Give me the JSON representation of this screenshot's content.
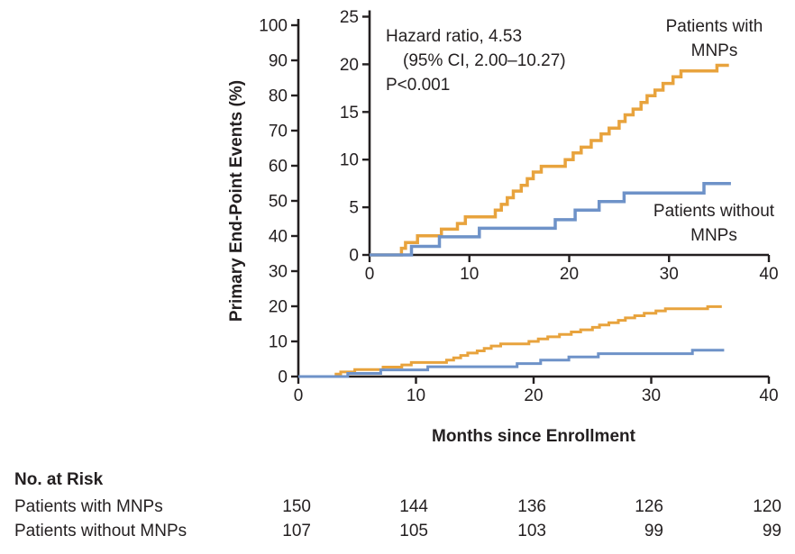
{
  "figure": {
    "series_labels": {
      "with_mnps_line1": "Patients with",
      "with_mnps_line2": "MNPs",
      "without_mnps_line1": "Patients without",
      "without_mnps_line2": "MNPs"
    }
  },
  "colors": {
    "with_mnps": "#E8A33D",
    "without_mnps": "#6E92C8",
    "axis": "#231F20",
    "background": "#FFFFFF"
  },
  "chart_data": [
    {
      "type": "line",
      "variant": "kaplan-meier-step",
      "title": "",
      "xlabel": "Months since Enrollment",
      "ylabel": "Primary End-Point Events (%)",
      "xlim": [
        0,
        40
      ],
      "ylim": [
        0,
        100
      ],
      "xticks": [
        0,
        10,
        20,
        30,
        40
      ],
      "yticks": [
        0,
        10,
        20,
        30,
        40,
        50,
        60,
        70,
        80,
        90,
        100
      ],
      "grid": false,
      "legend_position": "labels-on-plot",
      "series": [
        {
          "name": "Patients with MNPs",
          "color": "#E8A33D",
          "points": [
            [
              0,
              0
            ],
            [
              3.2,
              0.7
            ],
            [
              3.6,
              1.3
            ],
            [
              4.8,
              2.0
            ],
            [
              7.2,
              2.7
            ],
            [
              8.8,
              3.3
            ],
            [
              9.6,
              4.0
            ],
            [
              12.6,
              4.7
            ],
            [
              13.2,
              5.3
            ],
            [
              13.8,
              6.0
            ],
            [
              14.4,
              6.7
            ],
            [
              15.2,
              7.3
            ],
            [
              15.8,
              8.0
            ],
            [
              16.4,
              8.7
            ],
            [
              17.2,
              9.3
            ],
            [
              19.6,
              10.0
            ],
            [
              20.4,
              10.7
            ],
            [
              21.2,
              11.3
            ],
            [
              22.2,
              12.0
            ],
            [
              23.2,
              12.7
            ],
            [
              24.0,
              13.3
            ],
            [
              25.0,
              14.0
            ],
            [
              25.6,
              14.7
            ],
            [
              26.4,
              15.3
            ],
            [
              27.2,
              16.0
            ],
            [
              27.8,
              16.7
            ],
            [
              28.6,
              17.3
            ],
            [
              29.4,
              18.0
            ],
            [
              30.4,
              18.7
            ],
            [
              31.2,
              19.3
            ],
            [
              34.8,
              19.9
            ],
            [
              36.0,
              19.9
            ]
          ]
        },
        {
          "name": "Patients without MNPs",
          "color": "#6E92C8",
          "points": [
            [
              0,
              0
            ],
            [
              4.2,
              0.9
            ],
            [
              7.0,
              1.9
            ],
            [
              11.0,
              2.8
            ],
            [
              18.6,
              3.7
            ],
            [
              20.6,
              4.7
            ],
            [
              23.0,
              5.6
            ],
            [
              25.5,
              6.5
            ],
            [
              33.5,
              7.5
            ],
            [
              36.2,
              7.5
            ]
          ]
        }
      ]
    },
    {
      "type": "line",
      "variant": "kaplan-meier-step-inset",
      "title": "",
      "xlabel": "",
      "ylabel": "",
      "xlim": [
        0,
        40
      ],
      "ylim": [
        0,
        25
      ],
      "xticks": [
        0,
        10,
        20,
        30,
        40
      ],
      "yticks": [
        0,
        5,
        10,
        15,
        20,
        25
      ],
      "grid": false,
      "series_ref": 0,
      "annotation": [
        "Hazard ratio, 4.53",
        "(95% CI, 2.00–10.27)",
        "P<0.001"
      ]
    }
  ],
  "risk_table": {
    "title": "No. at Risk",
    "columns_months": [
      0,
      10,
      20,
      30,
      40
    ],
    "rows": [
      {
        "label": "Patients with MNPs",
        "values": [
          "150",
          "144",
          "136",
          "126",
          "120"
        ]
      },
      {
        "label": "Patients without MNPs",
        "values": [
          "107",
          "105",
          "103",
          "99",
          "99"
        ]
      }
    ]
  }
}
